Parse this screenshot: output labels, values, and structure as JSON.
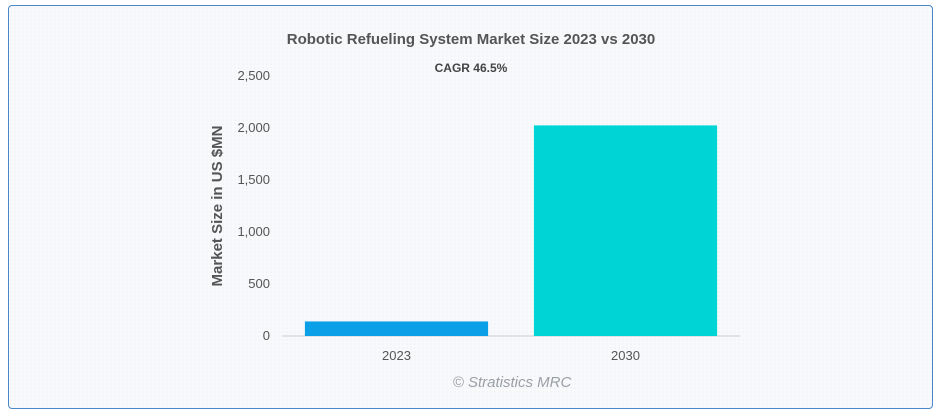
{
  "chart_data": {
    "type": "bar",
    "title": "Robotic Refueling System Market Size 2023 vs 2030",
    "subtitle": "CAGR 46.5%",
    "xlabel": "",
    "ylabel": "Market Size in US $MN",
    "categories": [
      "2023",
      "2030"
    ],
    "values": [
      140,
      2025
    ],
    "colors": [
      "#0a9fe6",
      "#00d4d4"
    ],
    "ylim": [
      0,
      2500
    ],
    "yticks": [
      0,
      500,
      1000,
      1500,
      2000,
      2500
    ],
    "ytick_labels": [
      "0",
      "500",
      "1,000",
      "1,500",
      "2,000",
      "2,500"
    ],
    "grid": false,
    "legend": "none"
  },
  "watermark": "© Stratistics MRC"
}
